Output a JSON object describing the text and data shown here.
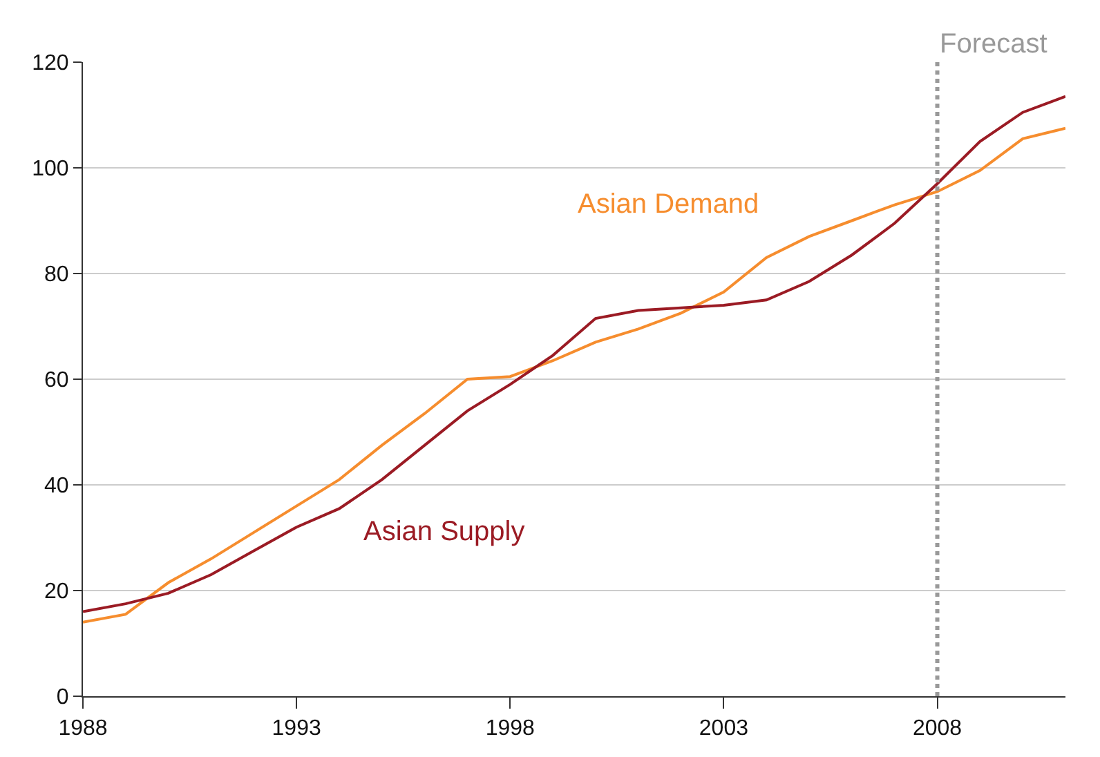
{
  "chart_data": {
    "type": "line",
    "x": [
      1988,
      1989,
      1990,
      1991,
      1992,
      1993,
      1994,
      1995,
      1996,
      1997,
      1998,
      1999,
      2000,
      2001,
      2002,
      2003,
      2004,
      2005,
      2006,
      2007,
      2008,
      2009,
      2010,
      2011
    ],
    "series": [
      {
        "name": "Asian Demand",
        "color": "#f68d2e",
        "values": [
          14,
          15.5,
          21.5,
          26,
          31,
          36,
          41,
          47.5,
          53.5,
          60,
          60.5,
          63.5,
          67,
          69.5,
          72.5,
          76.5,
          83,
          87,
          90,
          93,
          95.5,
          99.5,
          105.5,
          107.5
        ]
      },
      {
        "name": "Asian Supply",
        "color": "#9b1b24",
        "values": [
          16,
          17.5,
          19.5,
          23,
          27.5,
          32,
          35.5,
          41,
          47.5,
          54,
          59,
          64.5,
          71.5,
          73,
          73.5,
          74,
          75,
          78.5,
          83.5,
          89.5,
          97,
          105,
          110.5,
          113.5
        ]
      }
    ],
    "xlim": [
      1988,
      2011
    ],
    "xticks": [
      1988,
      1993,
      1998,
      2003,
      2008
    ],
    "ylim": [
      0,
      120
    ],
    "yticks": [
      0,
      20,
      40,
      60,
      80,
      100,
      120
    ],
    "grid": "y",
    "legend": false,
    "marker": "none",
    "line_style": "solid",
    "ref_lines": [
      {
        "axis": "x",
        "value": 2008,
        "label": "Forecast",
        "color": "#999999",
        "line_style": "dotted"
      }
    ]
  }
}
